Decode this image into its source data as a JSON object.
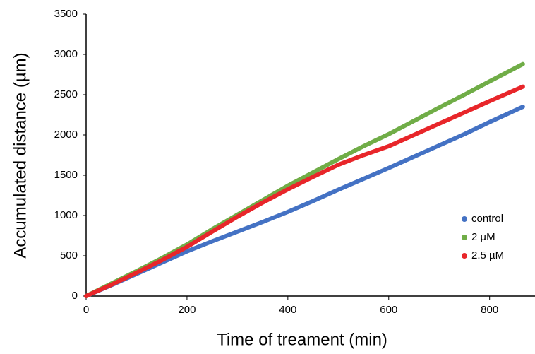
{
  "chart_data": {
    "type": "line",
    "x_label": "Time of treament (min)",
    "y_label": "Accumulated  distance (µm)",
    "x": [
      0,
      50,
      100,
      150,
      200,
      250,
      300,
      350,
      400,
      450,
      500,
      550,
      600,
      650,
      700,
      750,
      800,
      866
    ],
    "series": [
      {
        "name": "control",
        "color": "#4472c4",
        "values": [
          0,
          135,
          275,
          415,
          555,
          680,
          800,
          920,
          1045,
          1180,
          1320,
          1455,
          1590,
          1730,
          1870,
          2010,
          2160,
          2350
        ]
      },
      {
        "name": "2 µM",
        "color": "#70ad47",
        "values": [
          0,
          155,
          310,
          470,
          640,
          830,
          1010,
          1190,
          1370,
          1535,
          1700,
          1860,
          2010,
          2175,
          2340,
          2500,
          2665,
          2880
        ]
      },
      {
        "name": "2.5 µM",
        "color": "#e8262a",
        "values": [
          0,
          140,
          290,
          445,
          610,
          800,
          985,
          1160,
          1325,
          1480,
          1630,
          1750,
          1860,
          2000,
          2140,
          2280,
          2420,
          2600
        ]
      }
    ],
    "xlim": [
      0,
      890
    ],
    "xticks": [
      0,
      200,
      400,
      600,
      800
    ],
    "ylim": [
      0,
      3500
    ],
    "yticks": [
      0,
      500,
      1000,
      1500,
      2000,
      2500,
      3000,
      3500
    ],
    "legend": "lower right"
  }
}
